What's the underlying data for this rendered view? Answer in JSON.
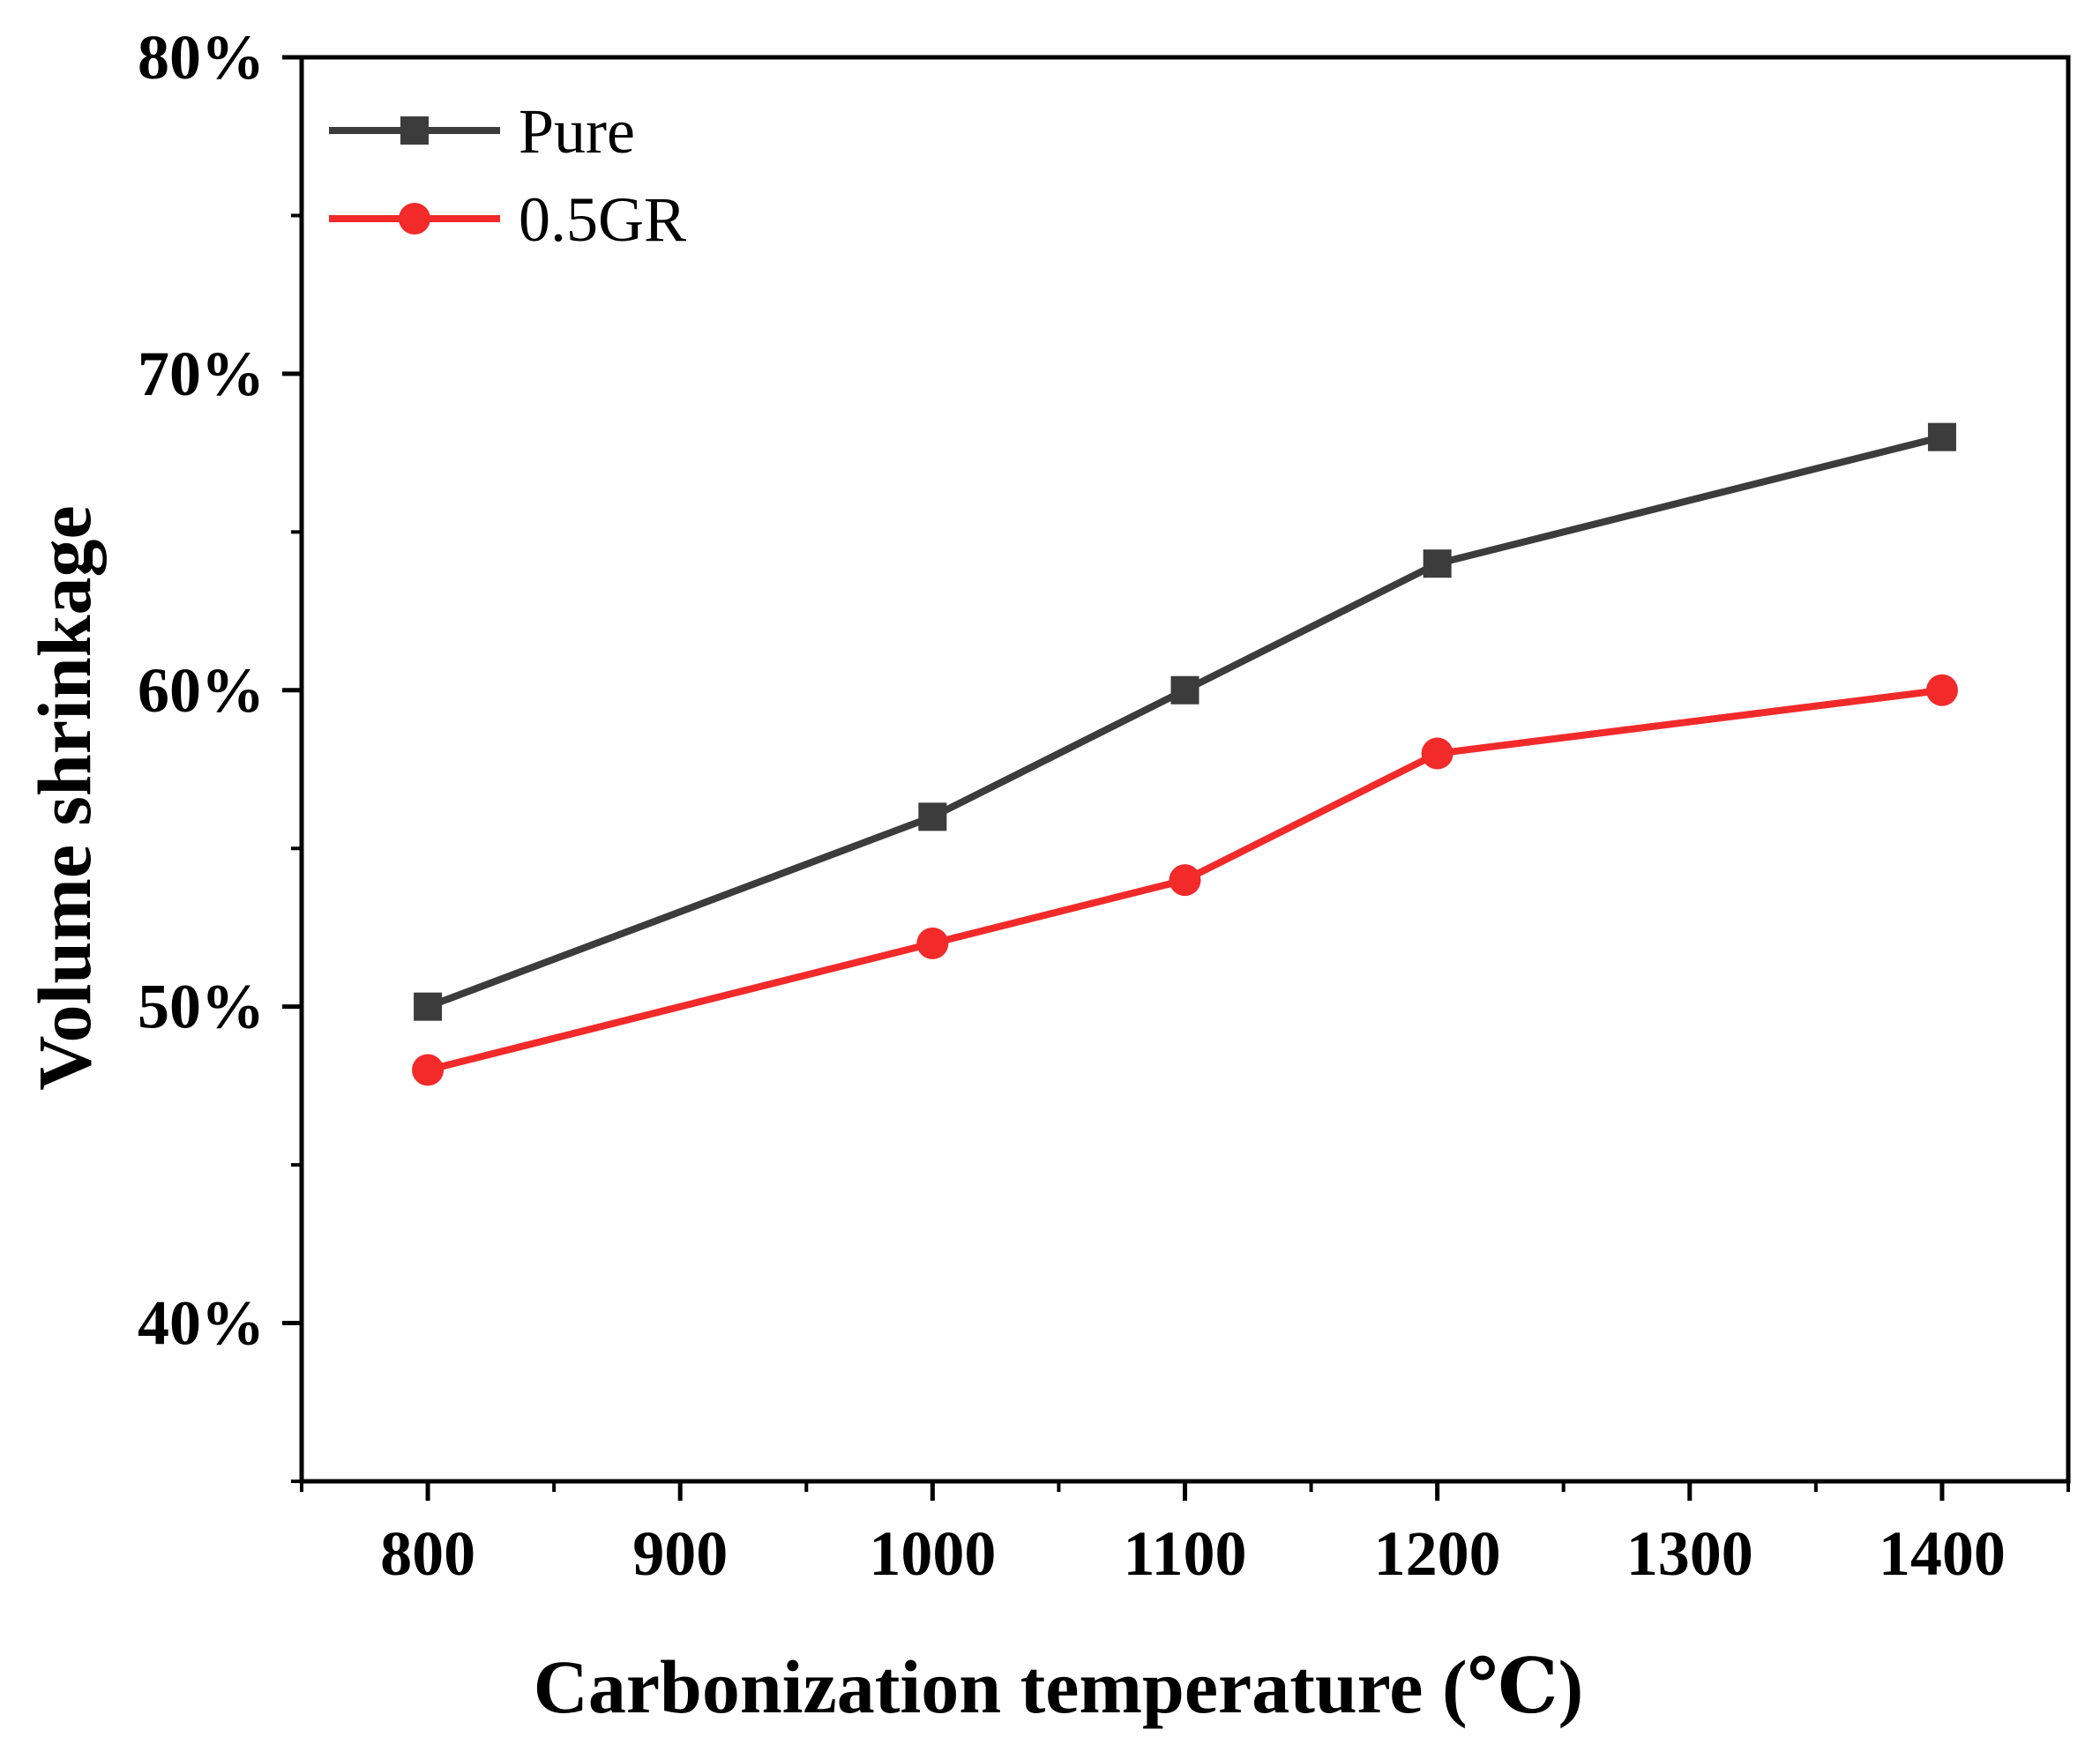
{
  "chart_data": {
    "type": "line",
    "title": "",
    "xlabel": "Carbonization temperature (℃)",
    "ylabel": "Volume shrinkage",
    "xlim": [
      750,
      1450
    ],
    "ylim": [
      35,
      80
    ],
    "x_ticks": [
      800,
      900,
      1000,
      1100,
      1200,
      1300,
      1400
    ],
    "x_tick_labels": [
      "800",
      "900",
      "1000",
      "1100",
      "1200",
      "1300",
      "1400"
    ],
    "y_ticks": [
      40,
      50,
      60,
      70,
      80
    ],
    "y_tick_labels": [
      "40%",
      "50%",
      "60%",
      "70%",
      "80%"
    ],
    "grid": false,
    "legend_position": "top-left",
    "series": [
      {
        "name": "Pure",
        "color": "#3c3c3c",
        "marker": "square",
        "x": [
          800,
          1000,
          1100,
          1200,
          1400
        ],
        "values": [
          50,
          56,
          60,
          64,
          68
        ]
      },
      {
        "name": "0.5GR",
        "color": "#f22a2a",
        "marker": "circle",
        "x": [
          800,
          1000,
          1100,
          1200,
          1400
        ],
        "values": [
          48,
          52,
          54,
          58,
          60
        ]
      }
    ]
  }
}
